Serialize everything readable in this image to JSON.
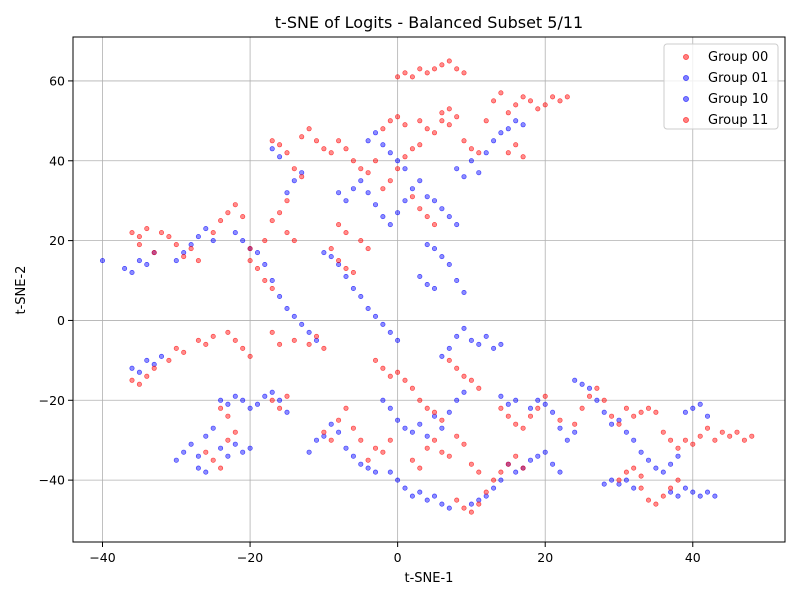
{
  "chart_data": {
    "type": "scatter",
    "title": "t-SNE of Logits - Balanced Subset 5/11",
    "xlabel": "t-SNE-1",
    "ylabel": "t-SNE-2",
    "xlim": [
      -44,
      52.5
    ],
    "ylim": [
      -55.5,
      71
    ],
    "x_ticks": [
      -40,
      -20,
      0,
      20,
      40
    ],
    "y_ticks": [
      -40,
      -20,
      0,
      20,
      40,
      60
    ],
    "x_tick_labels": [
      "−40",
      "−20",
      "0",
      "20",
      "40"
    ],
    "y_tick_labels": [
      "−40",
      "−20",
      "0",
      "20",
      "40",
      "60"
    ],
    "grid": true,
    "legend_position": "top-right",
    "series": [
      {
        "name": "Group 00",
        "color": "#ff0000"
      },
      {
        "name": "Group 01",
        "color": "#0000ff"
      },
      {
        "name": "Group 10",
        "color": "#0000ff"
      },
      {
        "name": "Group 11",
        "color": "#ff0000"
      }
    ],
    "red_points": [
      [
        -36,
        22
      ],
      [
        -35,
        21
      ],
      [
        -34,
        23
      ],
      [
        -35,
        19
      ],
      [
        -33,
        17
      ],
      [
        -32,
        22
      ],
      [
        -31,
        21
      ],
      [
        -30,
        19
      ],
      [
        -29,
        16
      ],
      [
        -28,
        18
      ],
      [
        -27,
        15
      ],
      [
        -25,
        22
      ],
      [
        -24,
        25
      ],
      [
        -23,
        27
      ],
      [
        -22,
        29
      ],
      [
        -21,
        26
      ],
      [
        -36,
        -15
      ],
      [
        -35,
        -16
      ],
      [
        -34,
        -14
      ],
      [
        -33,
        -12
      ],
      [
        -31,
        -10
      ],
      [
        -30,
        -7
      ],
      [
        -29,
        -8
      ],
      [
        -27,
        -5
      ],
      [
        -26,
        -6
      ],
      [
        -25,
        -4
      ],
      [
        -23,
        -3
      ],
      [
        -22,
        -5
      ],
      [
        -21,
        -7
      ],
      [
        -20,
        -9
      ],
      [
        -26,
        -33
      ],
      [
        -25,
        -35
      ],
      [
        -24,
        -37
      ],
      [
        -23,
        -30
      ],
      [
        -22,
        -28
      ],
      [
        -24,
        -22
      ],
      [
        -23,
        -24
      ],
      [
        -17,
        45
      ],
      [
        -16,
        44
      ],
      [
        -15,
        42
      ],
      [
        -13,
        46
      ],
      [
        -12,
        48
      ],
      [
        -11,
        45
      ],
      [
        -14,
        38
      ],
      [
        -13,
        36
      ],
      [
        -15,
        30
      ],
      [
        -16,
        27
      ],
      [
        -17,
        25
      ],
      [
        -15,
        22
      ],
      [
        -14,
        20
      ],
      [
        -18,
        20
      ],
      [
        -20,
        15
      ],
      [
        -19,
        13
      ],
      [
        -18,
        10
      ],
      [
        -17,
        8
      ],
      [
        -20,
        18
      ],
      [
        -17,
        -3
      ],
      [
        -16,
        -6
      ],
      [
        -14,
        -5
      ],
      [
        -12,
        -6
      ],
      [
        -11,
        -4
      ],
      [
        -10,
        -7
      ],
      [
        -17,
        -20
      ],
      [
        -16,
        -22
      ],
      [
        -15,
        -19
      ],
      [
        -10,
        43
      ],
      [
        -9,
        42
      ],
      [
        -8,
        45
      ],
      [
        -7,
        43
      ],
      [
        -6,
        40
      ],
      [
        -5,
        38
      ],
      [
        -4,
        37
      ],
      [
        -3,
        40
      ],
      [
        -8,
        24
      ],
      [
        -7,
        22
      ],
      [
        -5,
        20
      ],
      [
        -4,
        18
      ],
      [
        -9,
        18
      ],
      [
        -8,
        15
      ],
      [
        -7,
        13
      ],
      [
        -6,
        12
      ],
      [
        -10,
        -28
      ],
      [
        -9,
        -30
      ],
      [
        -8,
        -25
      ],
      [
        -7,
        -22
      ],
      [
        -6,
        -27
      ],
      [
        -5,
        -30
      ],
      [
        -4,
        -35
      ],
      [
        -3,
        -32
      ],
      [
        -2,
        -33
      ],
      [
        -1,
        -30
      ],
      [
        0,
        61
      ],
      [
        1,
        62
      ],
      [
        2,
        61
      ],
      [
        3,
        63
      ],
      [
        4,
        62
      ],
      [
        5,
        63
      ],
      [
        6,
        64
      ],
      [
        7,
        65
      ],
      [
        8,
        63
      ],
      [
        9,
        62
      ],
      [
        -2,
        48
      ],
      [
        -1,
        50
      ],
      [
        0,
        51
      ],
      [
        1,
        49
      ],
      [
        3,
        50
      ],
      [
        4,
        48
      ],
      [
        5,
        47
      ],
      [
        6,
        52
      ],
      [
        7,
        53
      ],
      [
        8,
        51
      ],
      [
        2,
        43
      ],
      [
        3,
        44
      ],
      [
        1,
        41
      ],
      [
        0,
        38
      ],
      [
        -1,
        35
      ],
      [
        -2,
        33
      ],
      [
        2,
        31
      ],
      [
        3,
        28
      ],
      [
        4,
        26
      ],
      [
        5,
        24
      ],
      [
        6,
        50
      ],
      [
        7,
        49
      ],
      [
        9,
        45
      ],
      [
        10,
        43
      ],
      [
        11,
        42
      ],
      [
        12,
        50
      ],
      [
        13,
        55
      ],
      [
        14,
        57
      ],
      [
        15,
        52
      ],
      [
        16,
        54
      ],
      [
        17,
        56
      ],
      [
        18,
        55
      ],
      [
        19,
        53
      ],
      [
        20,
        54
      ],
      [
        21,
        56
      ],
      [
        22,
        55
      ],
      [
        23,
        56
      ],
      [
        15,
        42
      ],
      [
        16,
        44
      ],
      [
        17,
        41
      ],
      [
        -3,
        -10
      ],
      [
        -2,
        -12
      ],
      [
        -1,
        -14
      ],
      [
        0,
        -13
      ],
      [
        1,
        -15
      ],
      [
        2,
        -17
      ],
      [
        3,
        -20
      ],
      [
        4,
        -22
      ],
      [
        5,
        -23
      ],
      [
        6,
        -25
      ],
      [
        2,
        -35
      ],
      [
        3,
        -37
      ],
      [
        4,
        -32
      ],
      [
        5,
        -30
      ],
      [
        6,
        -33
      ],
      [
        7,
        -34
      ],
      [
        8,
        -29
      ],
      [
        9,
        -31
      ],
      [
        10,
        -36
      ],
      [
        11,
        -38
      ],
      [
        8,
        -45
      ],
      [
        9,
        -47
      ],
      [
        10,
        -48
      ],
      [
        11,
        -46
      ],
      [
        12,
        -43
      ],
      [
        13,
        -40
      ],
      [
        14,
        -38
      ],
      [
        15,
        -36
      ],
      [
        16,
        -34
      ],
      [
        17,
        -37
      ],
      [
        7,
        -10
      ],
      [
        8,
        -12
      ],
      [
        9,
        -14
      ],
      [
        10,
        -15
      ],
      [
        11,
        -17
      ],
      [
        14,
        -22
      ],
      [
        15,
        -24
      ],
      [
        16,
        -26
      ],
      [
        17,
        -27
      ],
      [
        18,
        -24
      ],
      [
        19,
        -22
      ],
      [
        20,
        -19
      ],
      [
        22,
        -25
      ],
      [
        24,
        -26
      ],
      [
        25,
        -22
      ],
      [
        26,
        -19
      ],
      [
        27,
        -17
      ],
      [
        28,
        -20
      ],
      [
        29,
        -24
      ],
      [
        30,
        -26
      ],
      [
        31,
        -22
      ],
      [
        32,
        -24
      ],
      [
        33,
        -23
      ],
      [
        34,
        -22
      ],
      [
        35,
        -23
      ],
      [
        36,
        -28
      ],
      [
        37,
        -30
      ],
      [
        38,
        -32
      ],
      [
        39,
        -30
      ],
      [
        40,
        -31
      ],
      [
        41,
        -29
      ],
      [
        42,
        -27
      ],
      [
        43,
        -30
      ],
      [
        44,
        -28
      ],
      [
        45,
        -29
      ],
      [
        46,
        -28
      ],
      [
        47,
        -30
      ],
      [
        48,
        -29
      ],
      [
        34,
        -45
      ],
      [
        35,
        -46
      ],
      [
        36,
        -44
      ],
      [
        37,
        -42
      ],
      [
        38,
        -40
      ],
      [
        33,
        -42
      ],
      [
        30,
        -40
      ],
      [
        31,
        -38
      ],
      [
        32,
        -37
      ],
      [
        33,
        -39
      ]
    ],
    "blue_points": [
      [
        -40,
        15
      ],
      [
        -37,
        13
      ],
      [
        -36,
        12
      ],
      [
        -35,
        15
      ],
      [
        -34,
        14
      ],
      [
        -33,
        17
      ],
      [
        -30,
        15
      ],
      [
        -29,
        17
      ],
      [
        -28,
        19
      ],
      [
        -27,
        21
      ],
      [
        -26,
        23
      ],
      [
        -25,
        20
      ],
      [
        -36,
        -12
      ],
      [
        -35,
        -13
      ],
      [
        -34,
        -10
      ],
      [
        -33,
        -11
      ],
      [
        -32,
        -9
      ],
      [
        -30,
        -35
      ],
      [
        -29,
        -33
      ],
      [
        -28,
        -31
      ],
      [
        -27,
        -34
      ],
      [
        -26,
        -29
      ],
      [
        -25,
        -27
      ],
      [
        -24,
        -32
      ],
      [
        -23,
        -34
      ],
      [
        -22,
        -31
      ],
      [
        -21,
        -33
      ],
      [
        -20,
        -32
      ],
      [
        -27,
        -37
      ],
      [
        -26,
        -38
      ],
      [
        -24,
        -20
      ],
      [
        -23,
        -21
      ],
      [
        -22,
        -19
      ],
      [
        -21,
        -20
      ],
      [
        -20,
        -22
      ],
      [
        -19,
        -21
      ],
      [
        -18,
        -19
      ],
      [
        -17,
        -18
      ],
      [
        -16,
        -20
      ],
      [
        -15,
        -23
      ],
      [
        -22,
        22
      ],
      [
        -21,
        20
      ],
      [
        -20,
        18
      ],
      [
        -19,
        17
      ],
      [
        -18,
        14
      ],
      [
        -17,
        10
      ],
      [
        -16,
        6
      ],
      [
        -15,
        3
      ],
      [
        -14,
        1
      ],
      [
        -13,
        -1
      ],
      [
        -12,
        -3
      ],
      [
        -11,
        -5
      ],
      [
        -15,
        32
      ],
      [
        -14,
        35
      ],
      [
        -13,
        37
      ],
      [
        -16,
        41
      ],
      [
        -17,
        43
      ],
      [
        -10,
        17
      ],
      [
        -9,
        16
      ],
      [
        -8,
        14
      ],
      [
        -7,
        11
      ],
      [
        -6,
        8
      ],
      [
        -5,
        6
      ],
      [
        -4,
        3
      ],
      [
        -3,
        1
      ],
      [
        -2,
        -1
      ],
      [
        -1,
        -3
      ],
      [
        0,
        -5
      ],
      [
        -8,
        32
      ],
      [
        -7,
        30
      ],
      [
        -6,
        33
      ],
      [
        -5,
        35
      ],
      [
        -4,
        32
      ],
      [
        -3,
        29
      ],
      [
        -2,
        26
      ],
      [
        -1,
        24
      ],
      [
        0,
        27
      ],
      [
        1,
        30
      ],
      [
        2,
        33
      ],
      [
        3,
        35
      ],
      [
        -4,
        45
      ],
      [
        -3,
        47
      ],
      [
        -2,
        44
      ],
      [
        -1,
        42
      ],
      [
        0,
        40
      ],
      [
        1,
        38
      ],
      [
        4,
        31
      ],
      [
        5,
        30
      ],
      [
        6,
        28
      ],
      [
        7,
        26
      ],
      [
        8,
        24
      ],
      [
        4,
        19
      ],
      [
        5,
        18
      ],
      [
        6,
        16
      ],
      [
        7,
        14
      ],
      [
        8,
        10
      ],
      [
        9,
        7
      ],
      [
        3,
        11
      ],
      [
        4,
        9
      ],
      [
        5,
        8
      ],
      [
        6,
        -9
      ],
      [
        7,
        -7
      ],
      [
        8,
        -4
      ],
      [
        9,
        -2
      ],
      [
        10,
        -5
      ],
      [
        11,
        -6
      ],
      [
        12,
        -4
      ],
      [
        13,
        -7
      ],
      [
        14,
        -6
      ],
      [
        8,
        38
      ],
      [
        9,
        36
      ],
      [
        10,
        40
      ],
      [
        11,
        37
      ],
      [
        12,
        42
      ],
      [
        13,
        45
      ],
      [
        14,
        47
      ],
      [
        15,
        48
      ],
      [
        16,
        50
      ],
      [
        17,
        49
      ],
      [
        -1,
        -38
      ],
      [
        0,
        -40
      ],
      [
        1,
        -42
      ],
      [
        2,
        -44
      ],
      [
        3,
        -43
      ],
      [
        4,
        -45
      ],
      [
        5,
        -44
      ],
      [
        6,
        -46
      ],
      [
        7,
        -47
      ],
      [
        -2,
        -20
      ],
      [
        -1,
        -22
      ],
      [
        0,
        -25
      ],
      [
        1,
        -27
      ],
      [
        2,
        -28
      ],
      [
        3,
        -26
      ],
      [
        4,
        -29
      ],
      [
        5,
        -24
      ],
      [
        6,
        -27
      ],
      [
        7,
        -23
      ],
      [
        8,
        -20
      ],
      [
        9,
        -18
      ],
      [
        10,
        -46
      ],
      [
        11,
        -45
      ],
      [
        12,
        -44
      ],
      [
        13,
        -42
      ],
      [
        14,
        -40
      ],
      [
        15,
        -36
      ],
      [
        16,
        -38
      ],
      [
        17,
        -37
      ],
      [
        18,
        -35
      ],
      [
        19,
        -34
      ],
      [
        20,
        -33
      ],
      [
        21,
        -36
      ],
      [
        22,
        -38
      ],
      [
        14,
        -19
      ],
      [
        15,
        -21
      ],
      [
        16,
        -20
      ],
      [
        18,
        -22
      ],
      [
        19,
        -20
      ],
      [
        20,
        -21
      ],
      [
        21,
        -23
      ],
      [
        22,
        -27
      ],
      [
        23,
        -30
      ],
      [
        24,
        -28
      ],
      [
        24,
        -15
      ],
      [
        25,
        -16
      ],
      [
        26,
        -17
      ],
      [
        27,
        -20
      ],
      [
        28,
        -23
      ],
      [
        29,
        -26
      ],
      [
        30,
        -25
      ],
      [
        31,
        -28
      ],
      [
        32,
        -30
      ],
      [
        33,
        -33
      ],
      [
        34,
        -35
      ],
      [
        35,
        -37
      ],
      [
        36,
        -38
      ],
      [
        37,
        -36
      ],
      [
        38,
        -34
      ],
      [
        39,
        -23
      ],
      [
        40,
        -22
      ],
      [
        41,
        -21
      ],
      [
        42,
        -24
      ],
      [
        37,
        -43
      ],
      [
        38,
        -44
      ],
      [
        39,
        -42
      ],
      [
        40,
        -43
      ],
      [
        41,
        -44
      ],
      [
        42,
        -43
      ],
      [
        43,
        -44
      ],
      [
        28,
        -41
      ],
      [
        29,
        -40
      ],
      [
        30,
        -41
      ],
      [
        31,
        -40
      ],
      [
        32,
        -42
      ],
      [
        -6,
        -34
      ],
      [
        -5,
        -36
      ],
      [
        -4,
        -37
      ],
      [
        -3,
        -38
      ],
      [
        -7,
        -32
      ],
      [
        -8,
        -28
      ],
      [
        -9,
        -26
      ],
      [
        -10,
        -29
      ],
      [
        -11,
        -30
      ],
      [
        -12,
        -33
      ]
    ]
  }
}
